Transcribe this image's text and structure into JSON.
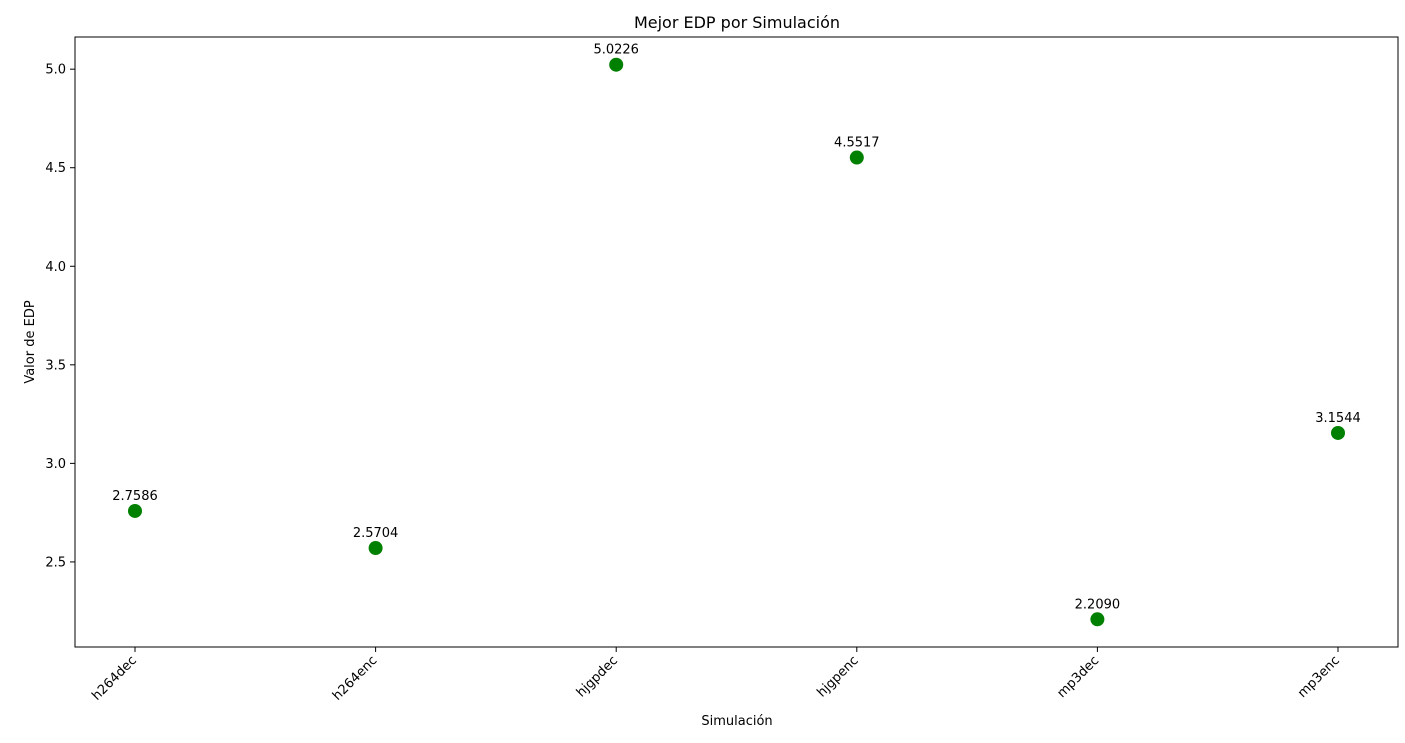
{
  "chart_data": {
    "type": "scatter",
    "title": "Mejor EDP por Simulación",
    "xlabel": "Simulación",
    "ylabel": "Valor de EDP",
    "categories": [
      "h264dec",
      "h264enc",
      "hjgpdec",
      "hjgpenc",
      "mp3dec",
      "mp3enc"
    ],
    "values": [
      2.7586,
      2.5704,
      5.0226,
      4.5517,
      2.209,
      3.1544
    ],
    "data_labels": [
      "2.7586",
      "2.5704",
      "5.0226",
      "4.5517",
      "2.2090",
      "3.1544"
    ],
    "ylim": [
      2.0684,
      5.1632
    ],
    "yticks": [
      2.5,
      3.0,
      3.5,
      4.0,
      4.5,
      5.0
    ],
    "ytick_labels": [
      "2.5",
      "3.0",
      "3.5",
      "4.0",
      "4.5",
      "5.0"
    ],
    "marker_color": "#008000",
    "grid": false,
    "legend": "none"
  }
}
